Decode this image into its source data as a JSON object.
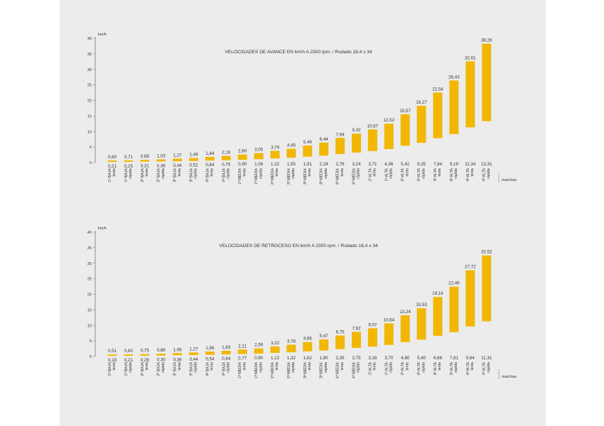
{
  "colors": {
    "bar": "#f2b705",
    "axis": "#777777",
    "text": "#333333",
    "panel": "#ececec"
  },
  "chart_data": [
    {
      "type": "bar",
      "title": "VELOCIDADES DE AVANCE EN km/h A 2300 rpm. / Rodado 18,4 x 34",
      "ylabel": "km/h",
      "xlabel": "marchas",
      "ylim": [
        0,
        40
      ],
      "yticks": [
        "0",
        "5",
        "10",
        "15",
        "20",
        "25",
        "30",
        "35",
        "40"
      ],
      "categories": [
        [
          "1ª BAJA",
          "lenta"
        ],
        [
          "1ª BAJA",
          "rápida"
        ],
        [
          "2ª BAJA",
          "lenta"
        ],
        [
          "2ª BAJA",
          "rápida"
        ],
        [
          "3ª BAJA",
          "lenta"
        ],
        [
          "3ª BAJA",
          "rápida"
        ],
        [
          "4ª BAJA",
          "lenta"
        ],
        [
          "4ª BAJA",
          "rápida"
        ],
        [
          "1ª MEDIA",
          "lenta"
        ],
        [
          "1ª MEDIA",
          "rápida"
        ],
        [
          "2ª MEDIA",
          "lenta"
        ],
        [
          "2ª MEDIA",
          "rápida"
        ],
        [
          "3ª MEDIA",
          "lenta"
        ],
        [
          "3ª MEDIA",
          "rápida"
        ],
        [
          "4ª MEDIA",
          "lenta"
        ],
        [
          "4ª MEDIA",
          "rápida"
        ],
        [
          "1ª ALTA",
          "lenta"
        ],
        [
          "1ª ALTA",
          "rápida"
        ],
        [
          "2ª ALTA",
          "lenta"
        ],
        [
          "2ª ALTA",
          "rápida"
        ],
        [
          "3ª ALTA",
          "lenta"
        ],
        [
          "3ª ALTA",
          "rápida"
        ],
        [
          "4ª ALTA",
          "lenta"
        ],
        [
          "4ª ALTA",
          "rápida"
        ]
      ],
      "low": [
        0.21,
        0.25,
        0.31,
        0.36,
        0.44,
        0.52,
        0.64,
        0.75,
        0.9,
        1.06,
        1.32,
        1.55,
        1.91,
        2.24,
        2.76,
        3.24,
        3.71,
        4.36,
        5.42,
        6.35,
        7.84,
        9.19,
        11.34,
        13.31
      ],
      "high": [
        0.6,
        0.71,
        0.88,
        1.03,
        1.27,
        1.49,
        1.84,
        2.16,
        2.6,
        3.05,
        3.79,
        4.45,
        5.49,
        6.44,
        7.94,
        9.32,
        10.67,
        12.52,
        15.57,
        18.27,
        22.54,
        26.43,
        32.61,
        38.26
      ],
      "low_labels": [
        "0,21",
        "0,25",
        "0,31",
        "0,36",
        "0,44",
        "0,52",
        "0,64",
        "0,75",
        "0,90",
        "1,06",
        "1,32",
        "1,55",
        "1,91",
        "2,24",
        "2,76",
        "3,24",
        "3,71",
        "4,36",
        "5,42",
        "6,35",
        "7,84",
        "9,19",
        "11,34",
        "13,31"
      ],
      "high_labels": [
        "0,60",
        "0,71",
        "0,88",
        "1,03",
        "1,27",
        "1,49",
        "1,84",
        "2,16",
        "2,60",
        "3,05",
        "3,79",
        "4,45",
        "5,49",
        "6,44",
        "7,94",
        "9,32",
        "10,67",
        "12,52",
        "15,57",
        "18,27",
        "22,54",
        "26,43",
        "32,61",
        "38,26"
      ]
    },
    {
      "type": "bar",
      "title": "VELOCIDADES DE RETROCESO EN km/h A 2300 rpm. / Rodado 18,4 x 34",
      "ylabel": "km/h",
      "xlabel": "marchas",
      "ylim": [
        0,
        40
      ],
      "yticks": [
        "0",
        "5",
        "10",
        "15",
        "20",
        "25",
        "30",
        "35",
        "40"
      ],
      "categories": [
        [
          "1ª BAJA",
          "lenta"
        ],
        [
          "1ª BAJA",
          "rápida"
        ],
        [
          "2ª BAJA",
          "lenta"
        ],
        [
          "2ª BAJA",
          "rápida"
        ],
        [
          "3ª BAJA",
          "lenta"
        ],
        [
          "3ª BAJA",
          "rápida"
        ],
        [
          "4ª BAJA",
          "lenta"
        ],
        [
          "4ª BAJA",
          "rápida"
        ],
        [
          "1ª MEDIA",
          "lenta"
        ],
        [
          "1ª MEDIA",
          "rápida"
        ],
        [
          "2ª MEDIA",
          "lenta"
        ],
        [
          "2ª MEDIA",
          "rápida"
        ],
        [
          "3ª MEDIA",
          "lenta"
        ],
        [
          "3ª MEDIA",
          "rápida"
        ],
        [
          "4ª MEDIA",
          "lenta"
        ],
        [
          "4ª MEDIA",
          "rápida"
        ],
        [
          "1ª ALTA",
          "lenta"
        ],
        [
          "1ª ALTA",
          "rápida"
        ],
        [
          "2ª ALTA",
          "lenta"
        ],
        [
          "2ª ALTA",
          "rápida"
        ],
        [
          "3ª ALTA",
          "lenta"
        ],
        [
          "3ª ALTA",
          "rápida"
        ],
        [
          "4ª ALTA",
          "lenta"
        ],
        [
          "4ª ALTA",
          "rápida"
        ]
      ],
      "low": [
        0.18,
        0.21,
        0.26,
        0.3,
        0.38,
        0.44,
        0.54,
        0.64,
        0.77,
        0.9,
        1.12,
        1.32,
        1.62,
        1.9,
        2.35,
        2.75,
        3.16,
        3.7,
        4.6,
        5.4,
        6.66,
        7.81,
        9.64,
        11.31
      ],
      "high": [
        0.51,
        0.6,
        0.75,
        0.88,
        1.08,
        1.27,
        1.56,
        1.83,
        2.21,
        2.59,
        3.22,
        3.78,
        4.66,
        5.47,
        6.75,
        7.92,
        9.07,
        10.64,
        13.24,
        15.53,
        19.16,
        22.46,
        27.72,
        32.52
      ],
      "low_labels": [
        "0,18",
        "0,21",
        "0,26",
        "0,30",
        "0,38",
        "0,44",
        "0,54",
        "0,64",
        "0,77",
        "0,90",
        "1,12",
        "1,32",
        "1,62",
        "1,90",
        "2,35",
        "2,75",
        "3,16",
        "3,70",
        "4,60",
        "5,40",
        "6,66",
        "7,81",
        "9,64",
        "11,31"
      ],
      "high_labels": [
        "0,51",
        "0,60",
        "0,75",
        "0,88",
        "1,08",
        "1,27",
        "1,56",
        "1,83",
        "2,21",
        "2,59",
        "3,22",
        "3,78",
        "4,66",
        "5,47",
        "6,75",
        "7,92",
        "9,07",
        "10,64",
        "13,24",
        "15,53",
        "19,16",
        "22,46",
        "27,72",
        "32,52"
      ]
    }
  ]
}
